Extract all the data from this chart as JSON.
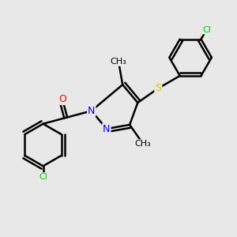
{
  "bg_color": "#e8e8e8",
  "atom_colors": {
    "C": "#000000",
    "N": "#0000ff",
    "O": "#ff0000",
    "S": "#cccc00",
    "Cl": "#00cc00"
  },
  "bond_color": "#000000",
  "bond_width": 1.8,
  "font_size_atom": 9,
  "font_size_small": 8,
  "xlim": [
    0.0,
    3.0
  ],
  "ylim": [
    0.0,
    3.0
  ]
}
